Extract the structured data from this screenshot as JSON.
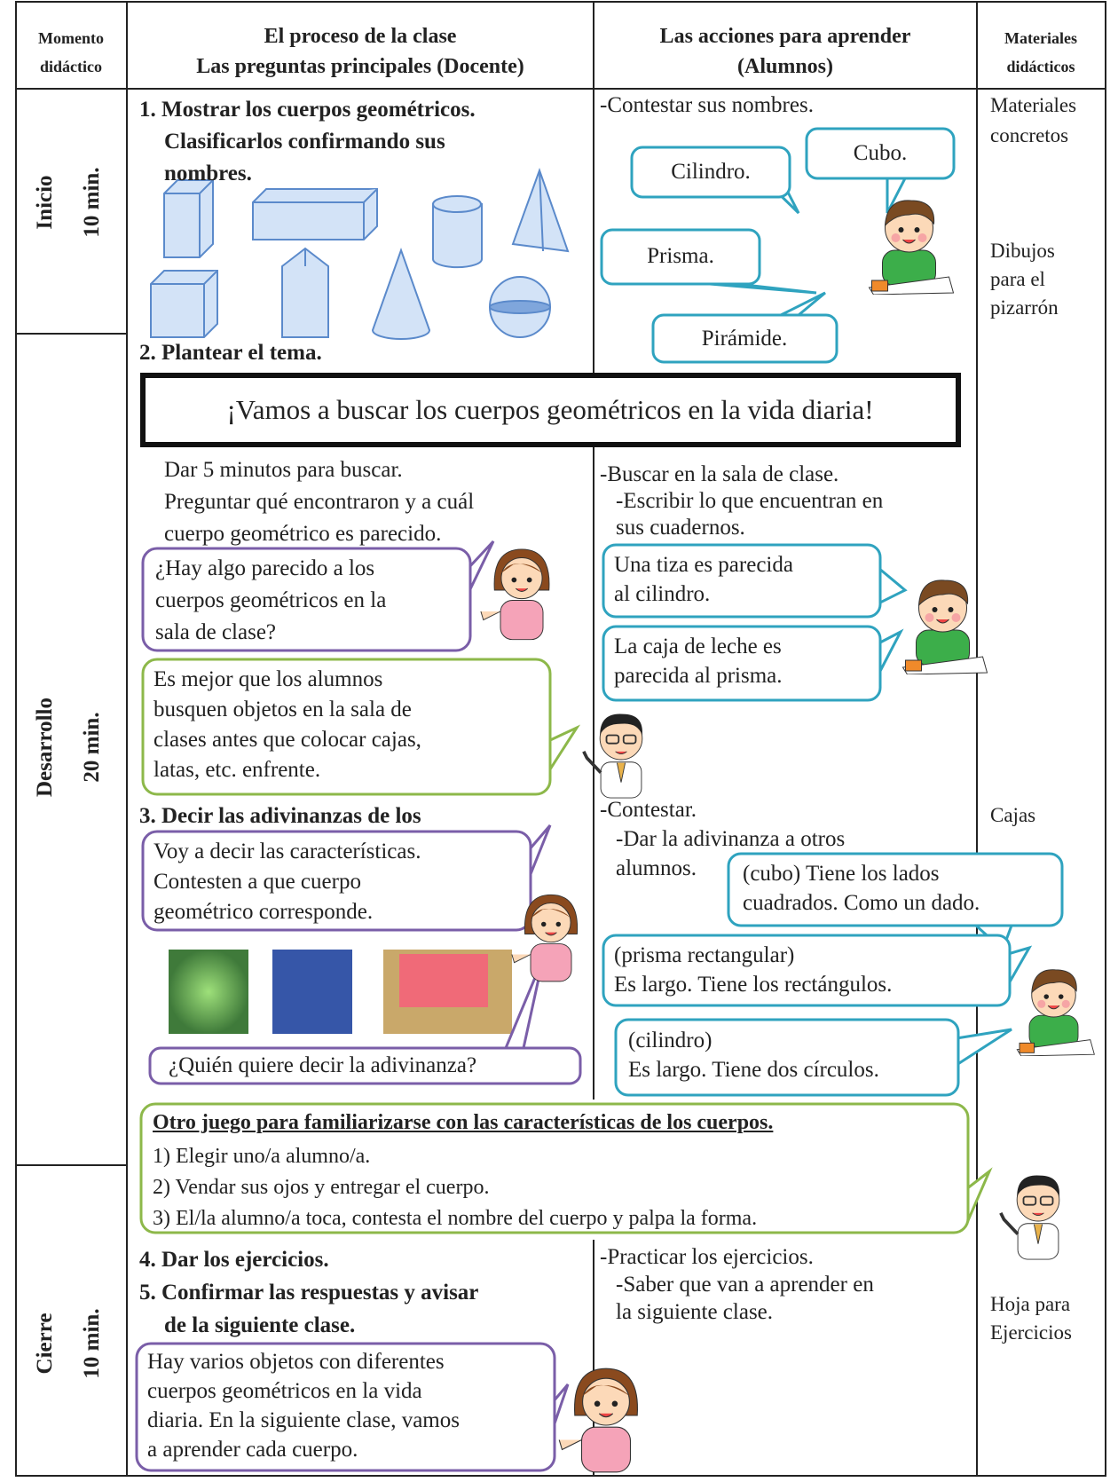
{
  "header": {
    "moment": [
      "Momento",
      "didáctico"
    ],
    "process": [
      "El proceso de la clase",
      "Las preguntas principales (Docente)"
    ],
    "actions": [
      "Las acciones para aprender",
      "(Alumnos)"
    ],
    "materials": [
      "Materiales",
      "didácticos"
    ]
  },
  "stages": [
    {
      "name": "Inicio",
      "time": "10 min."
    },
    {
      "name": "Desarrollo",
      "time": "20 min."
    },
    {
      "name": "Cierre",
      "time": "10 min."
    }
  ],
  "process": {
    "step1": [
      "1. Mostrar los cuerpos geométricos.",
      "Clasificarlos confirmando sus",
      "nombres."
    ],
    "step2": "2. Plantear el tema.",
    "theme": "¡Vamos a buscar los cuerpos geométricos en la vida diaria!",
    "instructions": [
      "Dar 5 minutos para buscar.",
      "Preguntar qué encontraron y a cuál",
      "cuerpo geométrico es parecido."
    ],
    "question1": [
      "¿Hay algo parecido a los",
      "cuerpos geométricos en la",
      "sala de clase?"
    ],
    "advice": [
      "Es mejor que los alumnos",
      "busquen objetos en la sala de",
      "clases antes que colocar cajas,",
      "latas, etc. enfrente."
    ],
    "step3": "3. Decir las adivinanzas de los",
    "question2": [
      "Voy a decir las características.",
      "Contesten a que cuerpo",
      "geométrico corresponde."
    ],
    "question3": "¿Quién quiere decir la adivinanza?",
    "game": {
      "title": "Otro juego para familiarizarse con las características de los cuerpos.",
      "items": [
        "1) Elegir uno/a alumno/a.",
        "2) Vendar sus ojos y entregar el cuerpo.",
        "3) El/la alumno/a toca, contesta el nombre del cuerpo y palpa la forma."
      ]
    },
    "step4": "4. Dar los ejercicios.",
    "step5": [
      "5. Confirmar las respuestas y avisar",
      "de la siguiente clase."
    ],
    "closing": [
      "Hay varios objetos con diferentes",
      "cuerpos geométricos en la vida",
      "diaria. En la siguiente clase, vamos",
      "a aprender cada cuerpo."
    ]
  },
  "actions": {
    "answer_task": "-Contestar sus nombres.",
    "answers": [
      "Cubo.",
      "Cilindro.",
      "Prisma.",
      "Pirámide."
    ],
    "search": [
      "-Buscar en la sala de clase.",
      "-Escribir lo que encuentran en",
      "sus cuadernos."
    ],
    "findings": [
      [
        "Una tiza es parecida",
        "al cilindro."
      ],
      [
        "La caja de leche es",
        "parecida al prisma."
      ]
    ],
    "riddle_task": [
      "-Contestar.",
      "-Dar la adivinanza a otros",
      "alumnos."
    ],
    "riddles": [
      [
        "(cubo) Tiene los lados",
        "cuadrados. Como un dado."
      ],
      [
        "(prisma rectangular)",
        "Es largo. Tiene los rectángulos."
      ],
      [
        "(cilindro)",
        "Es largo. Tiene dos círculos."
      ]
    ],
    "exercise_task": [
      "-Practicar los ejercicios.",
      "-Saber que van a aprender en",
      "la siguiente clase."
    ]
  },
  "materials": [
    [
      "Materiales",
      "concretos"
    ],
    [
      "Dibujos",
      "para el",
      "pizarrón"
    ],
    [
      "Cajas"
    ],
    [
      "Hoja para",
      "Ejercicios"
    ]
  ]
}
